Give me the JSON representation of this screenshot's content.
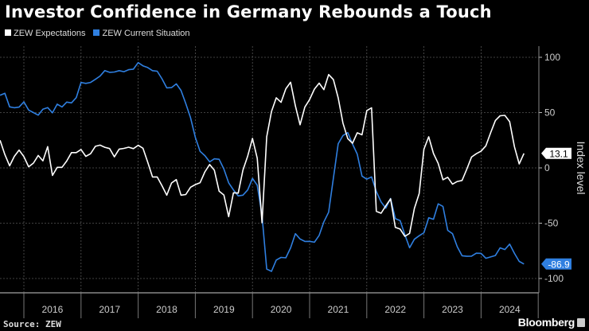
{
  "chart_data": {
    "type": "line",
    "title": "Investor Confidence in Germany Rebounds a Touch",
    "ylabel": "Index level",
    "xlabel": "",
    "ylim": [
      -110,
      110
    ],
    "yticks": [
      100,
      50,
      0,
      -50,
      -100
    ],
    "ytick_labels": [
      "100",
      "50",
      "0",
      "-50",
      "-100"
    ],
    "x_start": "2015-08",
    "x_end": "2024-10",
    "xtick_labels": [
      "2016",
      "2017",
      "2018",
      "2019",
      "2020",
      "2021",
      "2022",
      "2023",
      "2024"
    ],
    "grid": true,
    "legend_placement": "top-left",
    "series": [
      {
        "name": "ZEW Expectations",
        "color": "#ffffff",
        "last_value_label": "13.1",
        "values": [
          25.0,
          12.1,
          1.9,
          10.4,
          16.1,
          10.2,
          1.0,
          4.3,
          11.2,
          6.4,
          19.2,
          -6.8,
          0.5,
          0.5,
          6.2,
          13.8,
          13.8,
          16.6,
          10.4,
          12.8,
          19.5,
          20.6,
          18.6,
          17.5,
          10.0,
          17.0,
          17.6,
          18.7,
          17.4,
          20.4,
          17.8,
          5.1,
          -8.2,
          -8.2,
          -16.1,
          -24.7,
          -13.7,
          -10.6,
          -24.7,
          -24.1,
          -17.5,
          -15.1,
          -13.4,
          -3.6,
          3.1,
          -2.1,
          -21.1,
          -24.5,
          -44.1,
          -22.5,
          -22.8,
          -2.1,
          10.7,
          26.7,
          8.7,
          -49.5,
          28.2,
          51.0,
          63.4,
          59.3,
          71.5,
          77.4,
          56.1,
          39.0,
          55.0,
          61.8,
          71.2,
          76.6,
          70.7,
          84.4,
          79.8,
          63.3,
          40.4,
          26.5,
          22.3,
          31.7,
          29.9,
          51.7,
          54.3,
          -39.3,
          -41.0,
          -34.3,
          -28.0,
          -53.8,
          -55.3,
          -61.9,
          -59.2,
          -36.7,
          -23.3,
          16.9,
          28.1,
          13.0,
          4.1,
          -10.7,
          -8.5,
          -14.7,
          -12.3,
          -11.4,
          -1.1,
          9.8,
          12.8,
          15.2,
          19.9,
          31.7,
          42.9,
          47.1,
          47.5,
          41.8,
          19.2,
          3.6,
          13.1
        ]
      },
      {
        "name": "ZEW Current Situation",
        "color": "#2f7fe0",
        "last_value_label": "-86.9",
        "values": [
          65.7,
          67.5,
          55.2,
          54.4,
          55.0,
          59.7,
          52.3,
          50.0,
          47.7,
          53.1,
          54.5,
          49.8,
          57.6,
          55.1,
          59.5,
          58.8,
          63.5,
          77.3,
          76.4,
          77.3,
          80.1,
          83.0,
          88.0,
          86.4,
          86.7,
          87.9,
          87.0,
          88.8,
          89.3,
          95.2,
          92.3,
          90.7,
          87.9,
          87.4,
          80.6,
          72.4,
          72.6,
          76.0,
          70.1,
          58.2,
          45.3,
          27.6,
          15.0,
          11.1,
          5.5,
          8.2,
          7.8,
          -1.1,
          -13.5,
          -19.9,
          -25.3,
          -24.7,
          -19.9,
          -9.5,
          -15.7,
          -43.1,
          -91.5,
          -93.5,
          -83.3,
          -80.9,
          -81.3,
          -72.3,
          -59.5,
          -64.3,
          -66.5,
          -66.4,
          -67.2,
          -61.0,
          -48.8,
          -40.1,
          -9.1,
          21.9,
          29.3,
          31.9,
          21.6,
          12.5,
          -7.4,
          -10.2,
          -8.1,
          -21.4,
          -30.8,
          -36.5,
          -27.6,
          -45.8,
          -47.6,
          -60.5,
          -72.2,
          -64.5,
          -61.4,
          -58.6,
          -45.1,
          -46.5,
          -32.5,
          -34.8,
          -56.5,
          -59.5,
          -71.3,
          -79.4,
          -79.9,
          -79.8,
          -77.1,
          -77.3,
          -81.7,
          -80.5,
          -79.2,
          -72.3,
          -73.8,
          -68.9,
          -77.3,
          -84.5,
          -86.9
        ]
      }
    ]
  },
  "footer": {
    "source": "Source: ZEW",
    "brand": "Bloomberg"
  }
}
